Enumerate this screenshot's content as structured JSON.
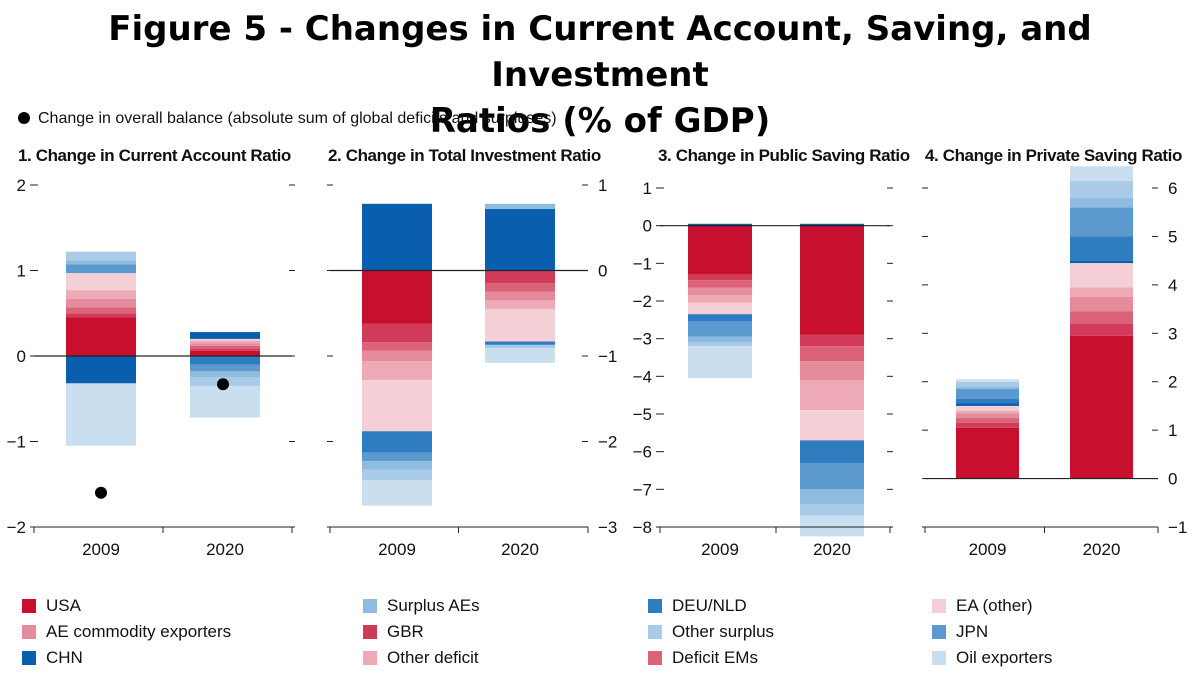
{
  "title": {
    "line1": "Figure 5 - Changes in Current Account, Saving, and Investment",
    "line2": "Ratios (% of GDP)"
  },
  "note": "Change in overall balance (absolute sum of global deficits and surpluses)",
  "colors": {
    "USA": "#c8102e",
    "GBR": "#d13a58",
    "Deficit EMs": "#dc6279",
    "AE commodity exporters": "#e48c9b",
    "Other deficit": "#eda9b5",
    "EA (other)": "#f4d0d6",
    "CHN": "#0a5eae",
    "DEU/NLD": "#2f7cc0",
    "JPN": "#5c99cf",
    "Surplus AEs": "#8dbce0",
    "Other surplus": "#a9cbe8",
    "Oil exporters": "#c9dff0",
    "axis": "#222222",
    "dot": "#000000"
  },
  "legend": [
    {
      "key": "USA",
      "label": "USA"
    },
    {
      "key": "AE commodity exporters",
      "label": "AE commodity exporters"
    },
    {
      "key": "CHN",
      "label": "CHN"
    },
    {
      "key": "Surplus AEs",
      "label": "Surplus AEs"
    },
    {
      "key": "GBR",
      "label": "GBR"
    },
    {
      "key": "Other deficit",
      "label": "Other deficit"
    },
    {
      "key": "DEU/NLD",
      "label": "DEU/NLD"
    },
    {
      "key": "Other surplus",
      "label": "Other surplus"
    },
    {
      "key": "Deficit EMs",
      "label": "Deficit EMs"
    },
    {
      "key": "EA (other)",
      "label": "EA (other)"
    },
    {
      "key": "JPN",
      "label": "JPN"
    },
    {
      "key": "Oil exporters",
      "label": "Oil exporters"
    }
  ],
  "chart_data": [
    {
      "type": "bar",
      "stacked": true,
      "title": "1. Change in Current Account Ratio",
      "categories": [
        "2009",
        "2020"
      ],
      "ylim": [
        -2,
        2
      ],
      "yticks": [
        -2,
        -1,
        0,
        1,
        2
      ],
      "axis_side": "left",
      "series": [
        {
          "name": "USA",
          "values": [
            0.45,
            0.06
          ]
        },
        {
          "name": "GBR",
          "values": [
            0.05,
            0.03
          ]
        },
        {
          "name": "Deficit EMs",
          "values": [
            0.07,
            0.03
          ]
        },
        {
          "name": "AE commodity exporters",
          "values": [
            0.1,
            0.03
          ]
        },
        {
          "name": "Other deficit",
          "values": [
            0.1,
            0.03
          ]
        },
        {
          "name": "EA (other)",
          "values": [
            0.2,
            0.02
          ]
        },
        {
          "name": "CHN",
          "values": [
            -0.32,
            0.08
          ]
        },
        {
          "name": "DEU/NLD",
          "values": [
            0.0,
            -0.1
          ]
        },
        {
          "name": "JPN",
          "values": [
            0.1,
            -0.08
          ]
        },
        {
          "name": "Surplus AEs",
          "values": [
            0.05,
            -0.07
          ]
        },
        {
          "name": "Other surplus",
          "values": [
            0.1,
            -0.1
          ]
        },
        {
          "name": "Oil exporters",
          "values": [
            -0.73,
            -0.37
          ]
        }
      ],
      "markers": {
        "name": "Change in overall balance",
        "values": [
          -1.6,
          -0.33
        ]
      }
    },
    {
      "type": "bar",
      "stacked": true,
      "title": "2. Change in Total Investment Ratio",
      "categories": [
        "2009",
        "2020"
      ],
      "ylim": [
        -3,
        1
      ],
      "yticks": [
        -3,
        -2,
        -1,
        0,
        1
      ],
      "axis_side": "right",
      "series": [
        {
          "name": "USA",
          "values": [
            -0.62,
            0.0
          ]
        },
        {
          "name": "GBR",
          "values": [
            -0.22,
            -0.15
          ]
        },
        {
          "name": "Deficit EMs",
          "values": [
            -0.1,
            -0.1
          ]
        },
        {
          "name": "AE commodity exporters",
          "values": [
            -0.12,
            -0.1
          ]
        },
        {
          "name": "Other deficit",
          "values": [
            -0.22,
            -0.1
          ]
        },
        {
          "name": "EA (other)",
          "values": [
            -0.6,
            -0.38
          ]
        },
        {
          "name": "CHN",
          "values": [
            0.78,
            0.72
          ]
        },
        {
          "name": "DEU/NLD",
          "values": [
            -0.25,
            -0.04
          ]
        },
        {
          "name": "JPN",
          "values": [
            -0.1,
            0.0
          ]
        },
        {
          "name": "Surplus AEs",
          "values": [
            -0.1,
            0.06
          ]
        },
        {
          "name": "Other surplus",
          "values": [
            -0.12,
            -0.04
          ]
        },
        {
          "name": "Oil exporters",
          "values": [
            -0.3,
            -0.17
          ]
        }
      ]
    },
    {
      "type": "bar",
      "stacked": true,
      "title": "3. Change in Public Saving Ratio",
      "categories": [
        "2009",
        "2020"
      ],
      "ylim": [
        -8,
        1
      ],
      "yticks": [
        -8,
        -7,
        -6,
        -5,
        -4,
        -3,
        -2,
        -1,
        0,
        1
      ],
      "axis_side": "left",
      "series": [
        {
          "name": "USA",
          "values": [
            -1.3,
            -2.9
          ]
        },
        {
          "name": "GBR",
          "values": [
            -0.15,
            -0.3
          ]
        },
        {
          "name": "Deficit EMs",
          "values": [
            -0.2,
            -0.4
          ]
        },
        {
          "name": "AE commodity exporters",
          "values": [
            -0.2,
            -0.5
          ]
        },
        {
          "name": "Other deficit",
          "values": [
            -0.2,
            -0.8
          ]
        },
        {
          "name": "EA (other)",
          "values": [
            -0.3,
            -0.8
          ]
        },
        {
          "name": "CHN",
          "values": [
            0.05,
            0.05
          ]
        },
        {
          "name": "DEU/NLD",
          "values": [
            -0.2,
            -0.6
          ]
        },
        {
          "name": "JPN",
          "values": [
            -0.4,
            -0.7
          ]
        },
        {
          "name": "Surplus AEs",
          "values": [
            -0.15,
            -0.4
          ]
        },
        {
          "name": "Other surplus",
          "values": [
            -0.1,
            -0.3
          ]
        },
        {
          "name": "Oil exporters",
          "values": [
            -0.85,
            -0.55
          ]
        }
      ]
    },
    {
      "type": "bar",
      "stacked": true,
      "title": "4. Change in Private Saving Ratio",
      "categories": [
        "2009",
        "2020"
      ],
      "ylim": [
        -1,
        6
      ],
      "yticks": [
        -1,
        0,
        1,
        2,
        3,
        4,
        5,
        6
      ],
      "axis_side": "right",
      "series": [
        {
          "name": "USA",
          "values": [
            1.05,
            2.95
          ]
        },
        {
          "name": "GBR",
          "values": [
            0.1,
            0.25
          ]
        },
        {
          "name": "Deficit EMs",
          "values": [
            0.1,
            0.25
          ]
        },
        {
          "name": "AE commodity exporters",
          "values": [
            0.1,
            0.3
          ]
        },
        {
          "name": "Other deficit",
          "values": [
            0.05,
            0.2
          ]
        },
        {
          "name": "EA (other)",
          "values": [
            0.1,
            0.5
          ]
        },
        {
          "name": "CHN",
          "values": [
            0.05,
            0.05
          ]
        },
        {
          "name": "DEU/NLD",
          "values": [
            0.1,
            0.5
          ]
        },
        {
          "name": "JPN",
          "values": [
            0.2,
            0.6
          ]
        },
        {
          "name": "Surplus AEs",
          "values": [
            0.05,
            0.2
          ]
        },
        {
          "name": "Other surplus",
          "values": [
            0.1,
            0.35
          ]
        },
        {
          "name": "Oil exporters",
          "values": [
            0.05,
            0.3
          ]
        }
      ]
    }
  ]
}
